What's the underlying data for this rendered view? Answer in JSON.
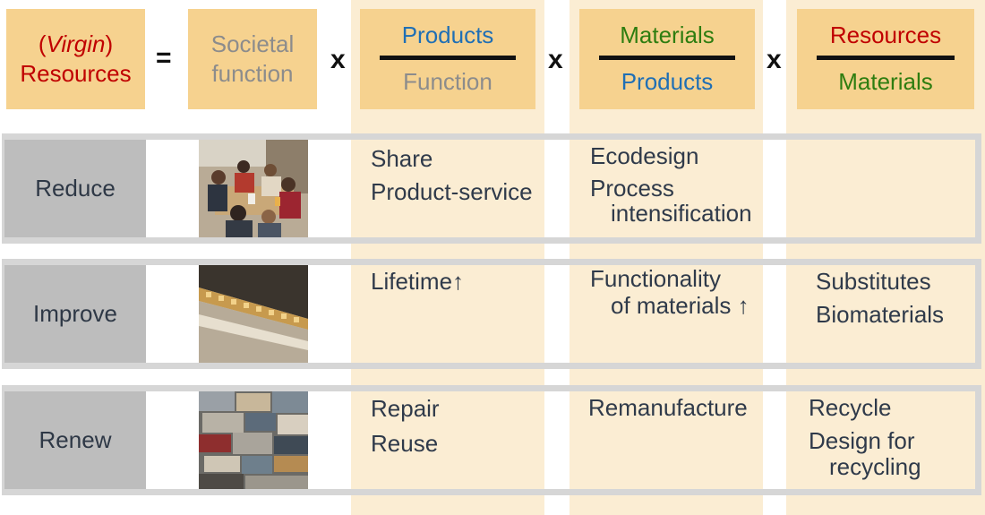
{
  "equation": {
    "virgin": "Virgin",
    "paren_open": "(",
    "paren_close": ")",
    "resources": "Resources",
    "equals": "=",
    "times": "x",
    "societal_function": [
      "Societal",
      "function"
    ],
    "fractions": [
      {
        "numerator": "Products",
        "denominator": "Function"
      },
      {
        "numerator": "Materials",
        "denominator": "Products"
      },
      {
        "numerator": "Resources",
        "denominator": "Materials"
      }
    ]
  },
  "rows": [
    {
      "label": "Reduce",
      "image": "people-sharing-table-photo",
      "products_function": [
        "Share",
        "Product-service"
      ],
      "materials_products": [
        "Ecodesign",
        "Process",
        "intensification"
      ],
      "resources_materials": []
    },
    {
      "label": "Improve",
      "image": "honeycomb-panel-photo",
      "products_function": [
        "Lifetime↑"
      ],
      "materials_products": [
        "Functionality",
        "of materials ↑"
      ],
      "resources_materials": [
        "Substitutes",
        "Biomaterials"
      ]
    },
    {
      "label": "Renew",
      "image": "scrapped-cars-photo",
      "products_function": [
        "Repair",
        "Reuse"
      ],
      "materials_products": [
        "Remanufacture"
      ],
      "resources_materials": [
        "Recycle",
        "Design for",
        "recycling"
      ]
    }
  ],
  "colors": {
    "header_box": "#f6d28f",
    "column_background": "#fbedd3",
    "row_label": "#bdbdbd",
    "row_border": "#d6d6d6",
    "red": "#c00000",
    "blue": "#1f6fb5",
    "green": "#2e7d10",
    "grey": "#8c8c8c"
  }
}
